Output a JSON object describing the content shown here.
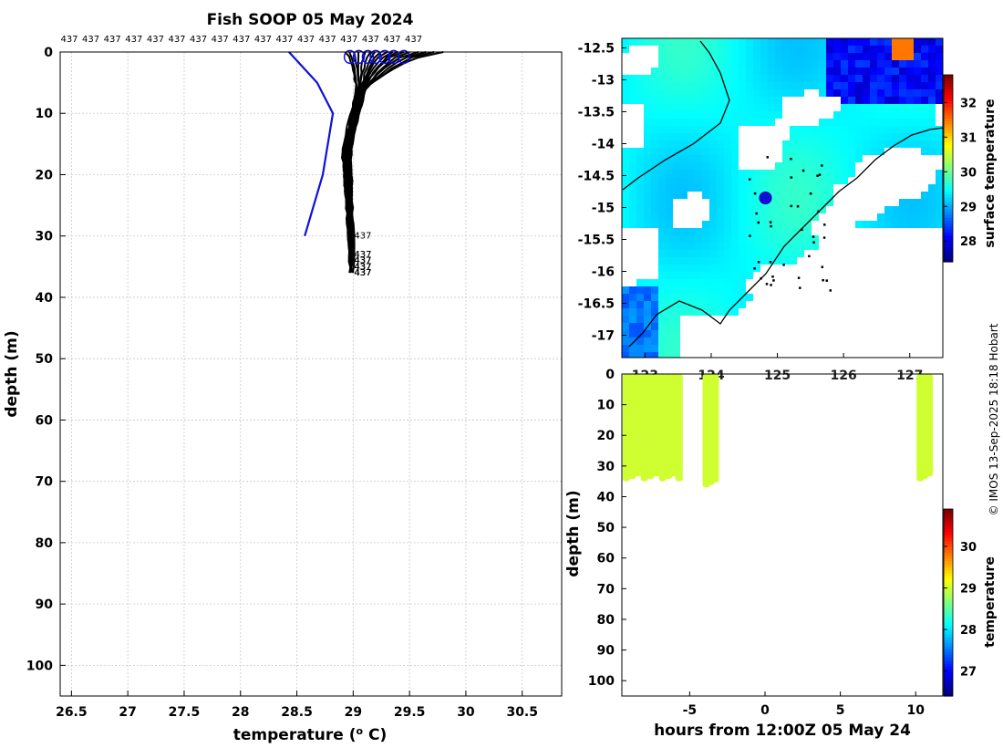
{
  "page": {
    "title": "Fish SOOP 05 May 2024",
    "footer": "© IMOS 13-Sep-2025 18:18 Hobart"
  },
  "chart_data": [
    {
      "type": "line",
      "name": "profile",
      "title": "Fish SOOP 05 May 2024",
      "xlabel": "temperature (° C)",
      "xlabel_main": "temperature (",
      "xlabel_sup": "o",
      "xlabel_end": " C)",
      "ylabel": "depth (m)",
      "xlim": [
        26.4,
        30.85
      ],
      "ylim": [
        105,
        0
      ],
      "y_reversed": true,
      "xticks": [
        26.5,
        27,
        27.5,
        28,
        28.5,
        29,
        29.5,
        30,
        30.5
      ],
      "yticks": [
        0,
        10,
        20,
        30,
        40,
        50,
        60,
        70,
        80,
        90,
        100
      ],
      "grid": true,
      "profile_label": "437",
      "top_labels_count": 17,
      "series": [
        {
          "color": "#1010d8",
          "x": [
            28.43,
            28.68,
            28.82,
            28.73,
            28.57
          ],
          "y": [
            0,
            5,
            10,
            20,
            30
          ]
        }
      ],
      "profiles_color": "#000000",
      "profiles": [
        {
          "surface": 29.8,
          "mid": 29.02,
          "bottom": 29.0,
          "max_depth": 36
        },
        {
          "surface": 29.72,
          "mid": 29.03,
          "bottom": 29.01,
          "max_depth": 35
        },
        {
          "surface": 29.65,
          "mid": 29.02,
          "bottom": 29.0,
          "max_depth": 34
        },
        {
          "surface": 29.58,
          "mid": 29.01,
          "bottom": 28.99,
          "max_depth": 36
        },
        {
          "surface": 29.5,
          "mid": 29.02,
          "bottom": 29.0,
          "max_depth": 35
        },
        {
          "surface": 29.45,
          "mid": 29.0,
          "bottom": 28.99,
          "max_depth": 34
        },
        {
          "surface": 29.4,
          "mid": 29.01,
          "bottom": 29.0,
          "max_depth": 33
        },
        {
          "surface": 29.35,
          "mid": 29.0,
          "bottom": 28.98,
          "max_depth": 36
        },
        {
          "surface": 29.3,
          "mid": 28.99,
          "bottom": 28.98,
          "max_depth": 35
        },
        {
          "surface": 29.25,
          "mid": 29.0,
          "bottom": 28.99,
          "max_depth": 34
        },
        {
          "surface": 29.2,
          "mid": 28.99,
          "bottom": 28.97,
          "max_depth": 36
        },
        {
          "surface": 29.15,
          "mid": 28.98,
          "bottom": 28.97,
          "max_depth": 35
        },
        {
          "surface": 29.1,
          "mid": 28.98,
          "bottom": 28.98,
          "max_depth": 34
        },
        {
          "surface": 29.05,
          "mid": 28.97,
          "bottom": 28.97,
          "max_depth": 33
        },
        {
          "surface": 29.0,
          "mid": 28.97,
          "bottom": 28.98,
          "max_depth": 36
        },
        {
          "surface": 28.96,
          "mid": 28.96,
          "bottom": 28.97,
          "max_depth": 35
        },
        {
          "surface": 28.93,
          "mid": 28.95,
          "bottom": 28.96,
          "max_depth": 30
        }
      ],
      "surface_markers_x": [
        28.97,
        29.05,
        29.13,
        29.2,
        29.28,
        29.36,
        29.45
      ]
    },
    {
      "type": "heatmap",
      "name": "surface-temperature-map",
      "colorbar_label": "surface temperature",
      "colorbar_range": [
        27.4,
        32.8
      ],
      "colorbar_ticks": [
        28,
        29,
        30,
        31,
        32
      ],
      "lon_range": [
        122.65,
        127.5
      ],
      "lat_range": [
        -17.35,
        -12.35
      ],
      "yticks": [
        -12.5,
        -13,
        -13.5,
        -14,
        -14.5,
        -15,
        -15.5,
        -16,
        -16.5,
        -17
      ],
      "xticks": [
        123,
        124,
        125,
        126,
        127
      ],
      "vessel_position": {
        "lon": 124.82,
        "lat": -14.85
      }
    },
    {
      "type": "heatmap",
      "name": "depth-time-section",
      "xlabel": "hours from 12:00Z 05 May 24",
      "ylabel": "depth (m)",
      "xlim": [
        -9.5,
        11.8
      ],
      "ylim": [
        105,
        0
      ],
      "xticks": [
        -5,
        0,
        5,
        10
      ],
      "yticks": [
        0,
        10,
        20,
        30,
        40,
        50,
        60,
        70,
        80,
        90,
        100
      ],
      "colorbar_label": "temperature",
      "colorbar_range": [
        26.4,
        30.9
      ],
      "colorbar_ticks": [
        27,
        28,
        29,
        30
      ],
      "casts": [
        {
          "hours": [
            -9.2,
            -8.8,
            -8.4,
            -8.0,
            -7.6,
            -7.2,
            -6.8,
            -6.4,
            -6.0,
            -5.7
          ],
          "max_depth": 35,
          "value": 29.0
        },
        {
          "hours": [
            -3.9,
            -3.6,
            -3.3
          ],
          "max_depth": 37,
          "value": 29.0
        },
        {
          "hours": [
            10.3,
            10.6,
            10.9
          ],
          "max_depth": 35,
          "value": 29.0
        }
      ]
    }
  ]
}
